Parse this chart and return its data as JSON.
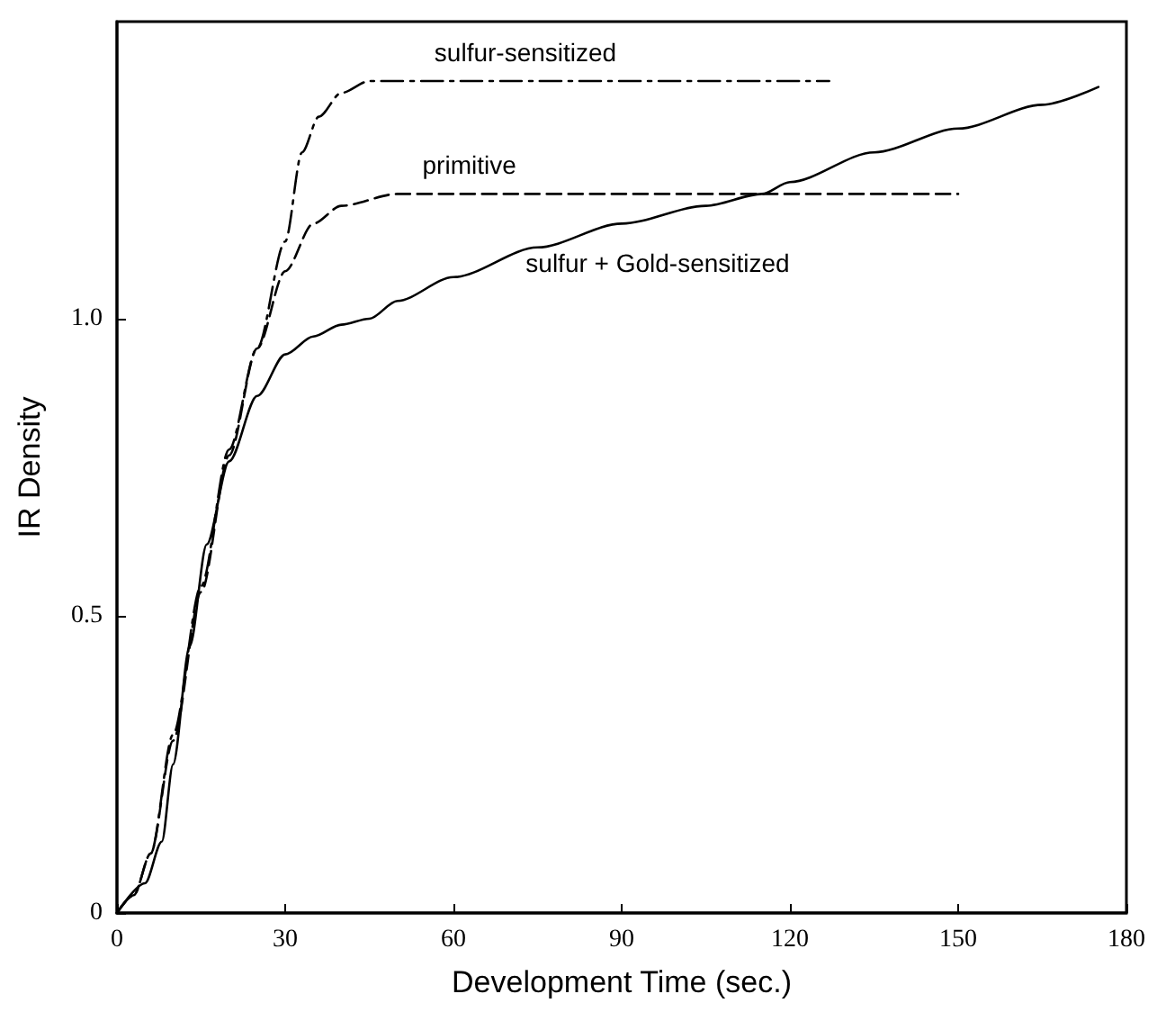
{
  "chart_data": {
    "type": "line",
    "xlabel": "Development Time (sec.)",
    "ylabel": "IR Density",
    "xlim": [
      0,
      180
    ],
    "xticks": [
      0,
      30,
      60,
      90,
      120,
      150,
      180
    ],
    "ylim": [
      0,
      1.5
    ],
    "yticks": [
      0,
      {
        "value": 0.5,
        "label": "0.5"
      },
      {
        "value": 1,
        "label": "1.0"
      }
    ],
    "grid": false,
    "legend": false,
    "marker": "none",
    "series": [
      {
        "name": "sulfur-sensitized",
        "color": "#000000",
        "line_style": "dashdot",
        "x": [
          0,
          3,
          6,
          10,
          15,
          20,
          25,
          30,
          33,
          36,
          40,
          45,
          60,
          127
        ],
        "values": [
          0,
          0.03,
          0.1,
          0.3,
          0.55,
          0.78,
          0.95,
          1.13,
          1.28,
          1.34,
          1.38,
          1.4,
          1.4,
          1.4
        ]
      },
      {
        "name": "primitive",
        "color": "#000000",
        "line_style": "dashed",
        "x": [
          0,
          3,
          6,
          10,
          15,
          20,
          25,
          30,
          35,
          40,
          50,
          150
        ],
        "values": [
          0,
          0.03,
          0.1,
          0.29,
          0.54,
          0.77,
          0.95,
          1.08,
          1.16,
          1.19,
          1.21,
          1.21
        ]
      },
      {
        "name": "sulfur + Gold-sensitized",
        "color": "#000000",
        "line_style": "solid",
        "x": [
          0,
          5,
          8,
          10,
          13,
          16,
          20,
          25,
          30,
          35,
          40,
          45,
          50,
          60,
          75,
          90,
          105,
          115,
          120,
          135,
          150,
          165,
          175
        ],
        "values": [
          0,
          0.05,
          0.12,
          0.25,
          0.45,
          0.62,
          0.76,
          0.87,
          0.94,
          0.97,
          0.99,
          1.0,
          1.03,
          1.07,
          1.12,
          1.16,
          1.19,
          1.21,
          1.23,
          1.28,
          1.32,
          1.36,
          1.39
        ]
      }
    ]
  }
}
